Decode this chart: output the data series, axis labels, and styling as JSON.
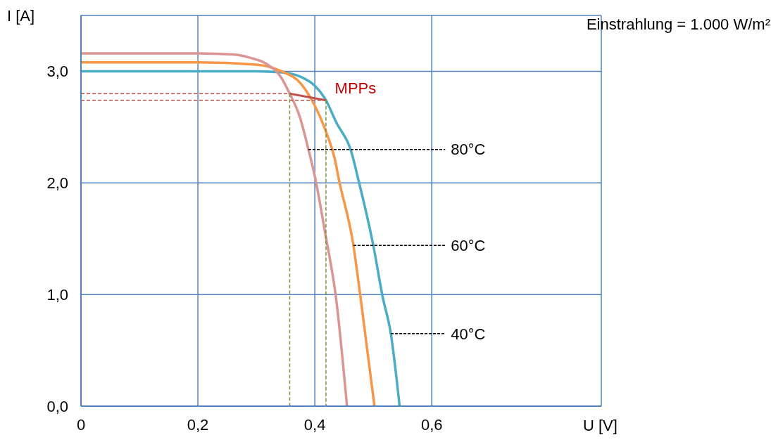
{
  "chart_data": {
    "type": "line",
    "title": "Einstrahlung = 1.000 W/m²",
    "xlabel": "U [V]",
    "ylabel": "I [A]",
    "xlim": [
      0,
      0.89
    ],
    "ylim": [
      0,
      3.5
    ],
    "xticks": [
      {
        "value": 0,
        "label": "0"
      },
      {
        "value": 0.2,
        "label": "0,2"
      },
      {
        "value": 0.4,
        "label": "0,4"
      },
      {
        "value": 0.6,
        "label": "0,6"
      }
    ],
    "yticks": [
      {
        "value": 0,
        "label": "0,0"
      },
      {
        "value": 1,
        "label": "1,0"
      },
      {
        "value": 2,
        "label": "2,0"
      },
      {
        "value": 3,
        "label": "3,0"
      }
    ],
    "grid": true,
    "marker": "none",
    "line_style": "solid",
    "series": [
      {
        "color": "#4bacc6",
        "x": [
          0,
          0.2,
          0.26,
          0.3,
          0.343,
          0.376,
          0.4,
          0.418,
          0.436,
          0.464,
          0.473,
          0.5,
          0.516,
          0.53,
          0.545
        ],
        "values": [
          3.0,
          3.0,
          3.0,
          3.0,
          2.99,
          2.95,
          2.87,
          2.75,
          2.55,
          2.25,
          2.06,
          1.44,
          0.98,
          0.65,
          0
        ]
      },
      {
        "color": "#f79646",
        "x": [
          0,
          0.2,
          0.3,
          0.343,
          0.376,
          0.395,
          0.419,
          0.436,
          0.44,
          0.466,
          0.478,
          0.502
        ],
        "values": [
          3.08,
          3.08,
          3.06,
          3.0,
          2.89,
          2.74,
          2.46,
          2.17,
          2.06,
          1.44,
          0.98,
          0
        ]
      },
      {
        "color": "#d99694",
        "x": [
          0,
          0.2,
          0.26,
          0.29,
          0.316,
          0.343,
          0.357,
          0.375,
          0.389,
          0.4,
          0.418,
          0.436,
          0.455
        ],
        "values": [
          3.16,
          3.16,
          3.15,
          3.12,
          3.07,
          2.94,
          2.8,
          2.58,
          2.3,
          2.06,
          1.54,
          0.98,
          0
        ]
      },
      {
        "color": "#c0504d",
        "x": [
          0.357,
          0.419
        ],
        "values": [
          2.8,
          2.74
        ]
      },
      {
        "color": "#c0504d",
        "line_style": "dashed",
        "x": [
          0,
          0.357
        ],
        "values": [
          2.8,
          2.8
        ]
      },
      {
        "color": "#c0504d",
        "line_style": "dashed",
        "x": [
          0,
          0.419
        ],
        "values": [
          2.74,
          2.74
        ]
      },
      {
        "color": "#77933c",
        "line_style": "dashed",
        "x": [
          0.357,
          0.357
        ],
        "values": [
          2.8,
          0
        ]
      },
      {
        "color": "#77933c",
        "line_style": "dashed",
        "x": [
          0.419,
          0.419
        ],
        "values": [
          2.74,
          0
        ]
      }
    ],
    "annotations": [
      {
        "text": "MPPs",
        "x": 0.419,
        "y": 2.74
      },
      {
        "text": "80°C",
        "x": 0.389,
        "y": 2.3
      },
      {
        "text": "60°C",
        "x": 0.466,
        "y": 1.44
      },
      {
        "text": "40°C",
        "x": 0.53,
        "y": 0.65
      }
    ]
  }
}
